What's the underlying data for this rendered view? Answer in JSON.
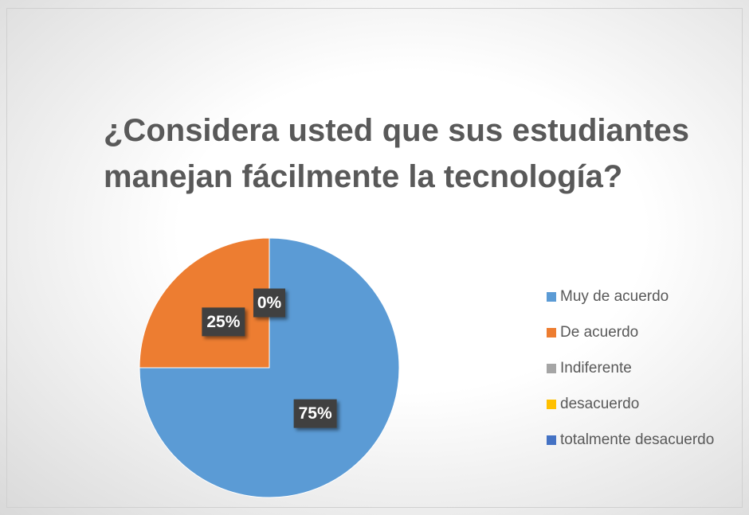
{
  "chart_data": {
    "type": "pie",
    "title": "¿Considera usted que sus estudiantes manejan fácilmente la tecnología?",
    "categories": [
      "Muy de acuerdo",
      "De acuerdo",
      "Indiferente",
      "desacuerdo",
      "totalmente desacuerdo"
    ],
    "values": [
      75,
      25,
      0,
      0,
      0
    ],
    "value_labels": [
      "75%",
      "25%",
      "0%",
      null,
      null
    ],
    "colors": [
      "#5b9bd5",
      "#ed7d31",
      "#a5a5a5",
      "#ffc000",
      "#4472c4"
    ],
    "legend": "right"
  }
}
